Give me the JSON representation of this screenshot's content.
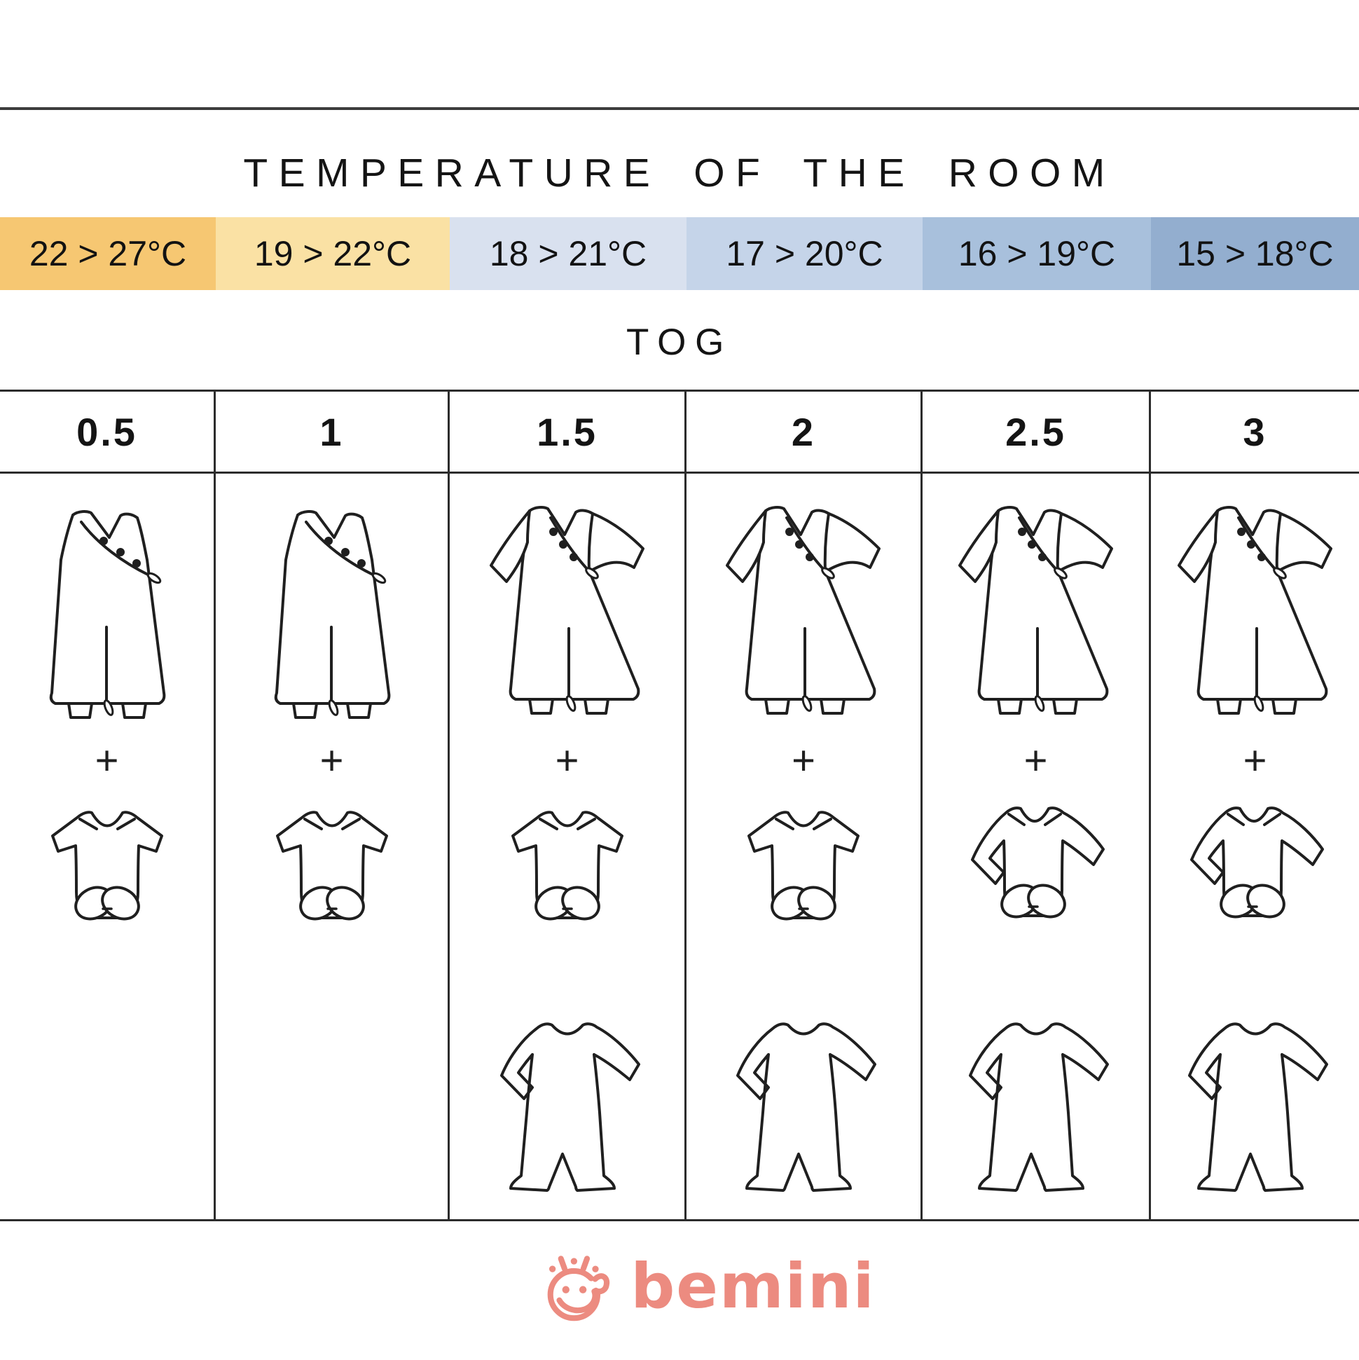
{
  "header": {
    "title": "TEMPERATURE OF THE ROOM"
  },
  "temperature_band": {
    "cells": [
      {
        "label": "22 > 27°C",
        "color": "#F6C772"
      },
      {
        "label": "19 > 22°C",
        "color": "#FAE1A4"
      },
      {
        "label": "18 > 21°C",
        "color": "#D9E1EF"
      },
      {
        "label": "17 > 20°C",
        "color": "#C5D4E9"
      },
      {
        "label": "16 > 19°C",
        "color": "#A8C0DC"
      },
      {
        "label": "15 > 18°C",
        "color": "#93AECF"
      }
    ]
  },
  "tog_section": {
    "label": "TOG"
  },
  "tog_table": {
    "plus_label": "+",
    "columns": [
      {
        "tog": "0.5",
        "items": [
          "sleeping-bag-sleeveless",
          "plus",
          "bodysuit-short-sleeve"
        ]
      },
      {
        "tog": "1",
        "items": [
          "sleeping-bag-sleeveless",
          "plus",
          "bodysuit-short-sleeve"
        ]
      },
      {
        "tog": "1.5",
        "items": [
          "sleeping-bag-long-sleeve",
          "plus",
          "bodysuit-short-sleeve",
          "pajamas-footed"
        ]
      },
      {
        "tog": "2",
        "items": [
          "sleeping-bag-long-sleeve",
          "plus",
          "bodysuit-short-sleeve",
          "pajamas-footed"
        ]
      },
      {
        "tog": "2.5",
        "items": [
          "sleeping-bag-long-sleeve",
          "plus",
          "bodysuit-long-sleeve",
          "pajamas-footed"
        ]
      },
      {
        "tog": "3",
        "items": [
          "sleeping-bag-long-sleeve",
          "plus",
          "bodysuit-long-sleeve",
          "pajamas-footed"
        ]
      }
    ]
  },
  "footer": {
    "brand": "bemini",
    "brand_color": "#EC8B80"
  }
}
